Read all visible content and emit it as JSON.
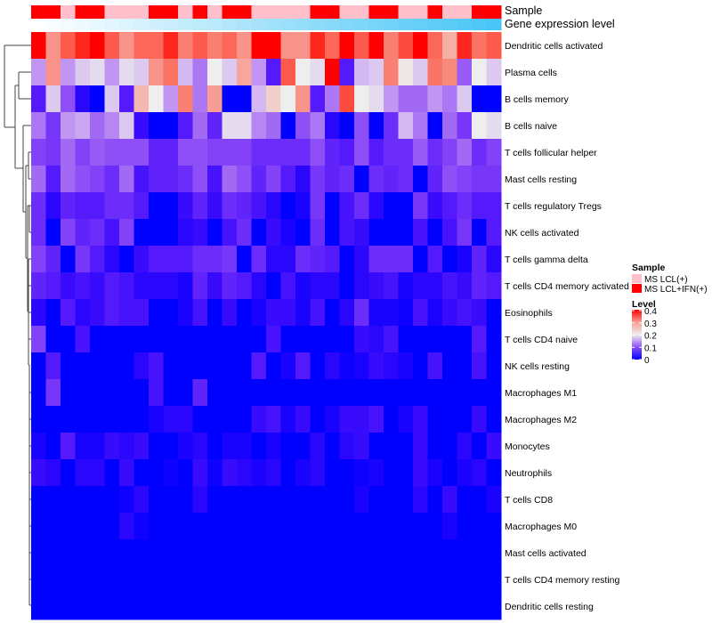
{
  "chart_data": {
    "type": "heatmap",
    "title": "",
    "annotations": {
      "sample_label": "Sample",
      "gene_label": "Gene expression level",
      "sample_groups": [
        "MS LCL+IFN(+)",
        "MS LCL+IFN(+)",
        "MS LCL(+)",
        "MS LCL+IFN(+)",
        "MS LCL+IFN(+)",
        "MS LCL(+)",
        "MS LCL(+)",
        "MS LCL(+)",
        "MS LCL+IFN(+)",
        "MS LCL+IFN(+)",
        "MS LCL(+)",
        "MS LCL+IFN(+)",
        "MS LCL(+)",
        "MS LCL+IFN(+)",
        "MS LCL+IFN(+)",
        "MS LCL(+)",
        "MS LCL(+)",
        "MS LCL(+)",
        "MS LCL(+)",
        "MS LCL+IFN(+)",
        "MS LCL+IFN(+)",
        "MS LCL(+)",
        "MS LCL(+)",
        "MS LCL+IFN(+)",
        "MS LCL+IFN(+)",
        "MS LCL(+)",
        "MS LCL(+)",
        "MS LCL+IFN(+)",
        "MS LCL(+)",
        "MS LCL(+)",
        "MS LCL+IFN(+)",
        "MS LCL+IFN(+)"
      ],
      "gene_gradient_colors": [
        "#ffffff",
        "#48c6f7"
      ]
    },
    "rows": [
      "Dendritic cells activated",
      "Plasma cells",
      "B cells memory",
      "B cells naive",
      "T cells follicular helper",
      "Mast cells resting",
      "T cells regulatory  Tregs",
      "NK cells activated",
      "T cells gamma delta",
      "T cells CD4 memory activated",
      "Eosinophils",
      "T cells CD4 naive",
      "NK cells resting",
      "Macrophages M1",
      "Macrophages M2",
      "Monocytes",
      "Neutrophils",
      "T cells CD8",
      "Macrophages M0",
      "Mast cells activated",
      "T cells CD4 memory resting",
      "Dendritic cells resting"
    ],
    "values": [
      [
        0.42,
        0.31,
        0.36,
        0.39,
        0.42,
        0.36,
        0.31,
        0.35,
        0.35,
        0.39,
        0.33,
        0.36,
        0.33,
        0.35,
        0.31,
        0.42,
        0.42,
        0.31,
        0.31,
        0.39,
        0.35,
        0.42,
        0.36,
        0.42,
        0.33,
        0.37,
        0.42,
        0.35,
        0.28,
        0.39,
        0.34,
        0.36
      ],
      [
        0.15,
        0.31,
        0.15,
        0.18,
        0.19,
        0.15,
        0.19,
        0.18,
        0.31,
        0.34,
        0.17,
        0.13,
        0.2,
        0.18,
        0.29,
        0.15,
        0.05,
        0.36,
        0.2,
        0.19,
        0.42,
        0.05,
        0.17,
        0.18,
        0.33,
        0.21,
        0.18,
        0.34,
        0.32,
        0.11,
        0.2,
        0.18
      ],
      [
        0.05,
        0.18,
        0.1,
        0.02,
        0,
        0.18,
        0.05,
        0.27,
        0.2,
        0.15,
        0.33,
        0.13,
        0.3,
        0,
        0,
        0.17,
        0.24,
        0.2,
        0.31,
        0.05,
        0.13,
        0.37,
        0.2,
        0.19,
        0.15,
        0.12,
        0.12,
        0.15,
        0.13,
        0.18,
        0,
        0
      ],
      [
        0.13,
        0.08,
        0.15,
        0.16,
        0.12,
        0.14,
        0.18,
        0.03,
        0,
        0,
        0.05,
        0.12,
        0.06,
        0.19,
        0.19,
        0.14,
        0.12,
        0,
        0.1,
        0.13,
        0.02,
        0,
        0.1,
        0,
        0.07,
        0.17,
        0.13,
        0,
        0.12,
        0.08,
        0.2,
        0.19
      ],
      [
        0.09,
        0.08,
        0.12,
        0.09,
        0.11,
        0.1,
        0.1,
        0.1,
        0.06,
        0.06,
        0.1,
        0.1,
        0.09,
        0.09,
        0.09,
        0.07,
        0.07,
        0.07,
        0.07,
        0.1,
        0.06,
        0.05,
        0.1,
        0.05,
        0.07,
        0.07,
        0.11,
        0.07,
        0.09,
        0.12,
        0.07,
        0.09
      ],
      [
        0.12,
        0.05,
        0.12,
        0.1,
        0.09,
        0.07,
        0.12,
        0.04,
        0.06,
        0.06,
        0.07,
        0.1,
        0.04,
        0.12,
        0.1,
        0.06,
        0.09,
        0.05,
        0.02,
        0.08,
        0.06,
        0.07,
        0,
        0.07,
        0.06,
        0.07,
        0,
        0.06,
        0.1,
        0.09,
        0.08,
        0.08
      ],
      [
        0.07,
        0.02,
        0.06,
        0.05,
        0.05,
        0.07,
        0.07,
        0.05,
        0,
        0,
        0.03,
        0.06,
        0.03,
        0.07,
        0.06,
        0.04,
        0.02,
        0,
        0.01,
        0.08,
        0,
        0.04,
        0.07,
        0.02,
        0,
        0,
        0.08,
        0.03,
        0.05,
        0.07,
        0.05,
        0.05
      ],
      [
        0.07,
        0,
        0.09,
        0.06,
        0.07,
        0.04,
        0.09,
        0,
        0,
        0,
        0.02,
        0.03,
        0,
        0.04,
        0.07,
        0,
        0.03,
        0.01,
        0,
        0.07,
        0,
        0.04,
        0.03,
        0,
        0,
        0,
        0.04,
        0,
        0.04,
        0.08,
        0,
        0.05
      ],
      [
        0.09,
        0.06,
        0,
        0.08,
        0.05,
        0.02,
        0,
        0.03,
        0.05,
        0.05,
        0.05,
        0.07,
        0.07,
        0.08,
        0,
        0.07,
        0.02,
        0.02,
        0.07,
        0.06,
        0.05,
        0,
        0.02,
        0.07,
        0.07,
        0.07,
        0,
        0.05,
        0,
        0.01,
        0.06,
        0.02
      ],
      [
        0.06,
        0.05,
        0.03,
        0.04,
        0.03,
        0.05,
        0.04,
        0.02,
        0.02,
        0.02,
        0.01,
        0.06,
        0.03,
        0.06,
        0.05,
        0.02,
        0,
        0.04,
        0.01,
        0.02,
        0.02,
        0,
        0.02,
        0.03,
        0.04,
        0.01,
        0.02,
        0.02,
        0.04,
        0.03,
        0.06,
        0.05
      ],
      [
        0.02,
        0,
        0.05,
        0.02,
        0.03,
        0.05,
        0.04,
        0.04,
        0,
        0,
        0.01,
        0.04,
        0,
        0.03,
        0,
        0.01,
        0.03,
        0.03,
        0.01,
        0.04,
        0,
        0.02,
        0.07,
        0.01,
        0.01,
        0.005,
        0.04,
        0.01,
        0.03,
        0.04,
        0.03,
        0
      ],
      [
        0.09,
        0,
        0,
        0.04,
        0,
        0,
        0,
        0,
        0,
        0,
        0,
        0,
        0,
        0,
        0,
        0,
        0.04,
        0,
        0,
        0,
        0,
        0,
        0.03,
        0.02,
        0.04,
        0,
        0,
        0,
        0,
        0,
        0.05,
        0
      ],
      [
        0,
        0.05,
        0,
        0,
        0,
        0,
        0,
        0.02,
        0.04,
        0,
        0,
        0,
        0,
        0,
        0,
        0.05,
        0,
        0.01,
        0.05,
        0,
        0.02,
        0.005,
        0.01,
        0.03,
        0.02,
        0.01,
        0,
        0.04,
        0,
        0,
        0.04,
        0
      ],
      [
        0,
        0.08,
        0,
        0,
        0,
        0,
        0,
        0,
        0.04,
        0,
        0,
        0.06,
        0,
        0,
        0,
        0,
        0,
        0,
        0,
        0,
        0,
        0,
        0,
        0,
        0,
        0,
        0,
        0,
        0,
        0,
        0,
        0
      ],
      [
        0,
        0,
        0,
        0,
        0,
        0,
        0,
        0,
        0.01,
        0.02,
        0.02,
        0,
        0,
        0,
        0,
        0.03,
        0.04,
        0.01,
        0.03,
        0,
        0.01,
        0.03,
        0.03,
        0.04,
        0,
        0.01,
        0.03,
        0,
        0,
        0,
        0.03,
        0
      ],
      [
        0.01,
        0,
        0.05,
        0.01,
        0.01,
        0.03,
        0.02,
        0.03,
        0,
        0,
        0.01,
        0.02,
        0,
        0.01,
        0.01,
        0,
        0.01,
        0,
        0,
        0.02,
        0,
        0.02,
        0.03,
        0,
        0,
        0,
        0.03,
        0,
        0,
        0.02,
        0,
        0.03
      ],
      [
        0.03,
        0.02,
        0,
        0.02,
        0.02,
        0,
        0.03,
        0,
        0,
        0.005,
        0,
        0.03,
        0.005,
        0.03,
        0.02,
        0.01,
        0.02,
        0,
        0.01,
        0.02,
        0,
        0,
        0.005,
        0.01,
        0,
        0,
        0.03,
        0.01,
        0,
        0.01,
        0.02,
        0
      ],
      [
        0,
        0,
        0,
        0,
        0,
        0,
        0.005,
        0.02,
        0,
        0,
        0,
        0.02,
        0,
        0,
        0,
        0,
        0,
        0,
        0,
        0,
        0,
        0,
        0.01,
        0,
        0,
        0,
        0.02,
        0,
        0.03,
        0,
        0,
        0.01
      ],
      [
        0,
        0,
        0,
        0,
        0,
        0,
        0.02,
        0.005,
        0,
        0,
        0,
        0,
        0,
        0,
        0,
        0,
        0,
        0,
        0,
        0,
        0,
        0,
        0,
        0,
        0,
        0,
        0,
        0,
        0.01,
        0,
        0,
        0
      ],
      [
        0,
        0,
        0,
        0,
        0,
        0,
        0,
        0,
        0,
        0,
        0,
        0,
        0,
        0,
        0,
        0,
        0,
        0,
        0,
        0,
        0,
        0,
        0,
        0,
        0,
        0,
        0,
        0,
        0,
        0,
        0,
        0
      ],
      [
        0,
        0,
        0,
        0,
        0,
        0,
        0,
        0,
        0,
        0,
        0,
        0,
        0,
        0,
        0,
        0,
        0,
        0,
        0,
        0,
        0,
        0,
        0,
        0,
        0,
        0,
        0,
        0,
        0,
        0,
        0,
        0
      ],
      [
        0,
        0,
        0,
        0,
        0,
        0,
        0,
        0,
        0,
        0,
        0,
        0,
        0,
        0,
        0,
        0,
        0,
        0,
        0,
        0,
        0,
        0,
        0,
        0,
        0,
        0,
        0,
        0,
        0,
        0,
        0,
        0
      ]
    ],
    "color_scale": {
      "min": 0,
      "mid": 0.2,
      "max": 0.4,
      "low_color": "#0000ff",
      "mid_color": "#eeeeee",
      "high_color": "#ff0000"
    },
    "legend": {
      "placement": "right",
      "sample_title": "Sample",
      "sample_items": [
        {
          "label": "MS LCL(+)",
          "color": "#ffc0cb"
        },
        {
          "label": "MS LCL+IFN(+)",
          "color": "#ff0000"
        }
      ],
      "level_title": "Level",
      "level_ticks": [
        "0.4",
        "0.3",
        "0.2",
        "0.1",
        "0"
      ]
    }
  }
}
